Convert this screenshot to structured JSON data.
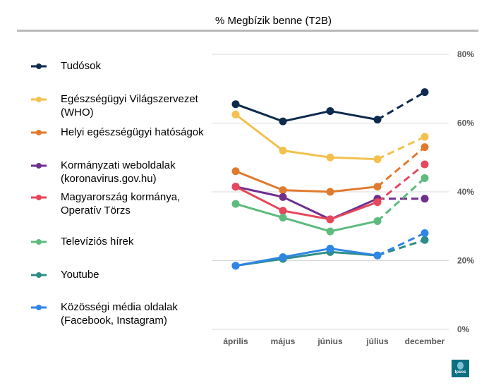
{
  "chart_data": {
    "type": "line",
    "title": "% Megbízik benne (T2B)",
    "categories": [
      "április",
      "május",
      "június",
      "július",
      "december"
    ],
    "ylim": [
      0,
      80
    ],
    "yticks": [
      "0%",
      "20%",
      "40%",
      "60%",
      "80%"
    ],
    "yaxis_position": "right",
    "grid": "horizontal",
    "legend_position": "left",
    "dashed_from_category": "július",
    "series": [
      {
        "name": "Tudósok",
        "color": "#0e2a4e",
        "values": [
          65.5,
          60.5,
          63.5,
          61,
          69
        ]
      },
      {
        "name": "Egészségügyi Világszervezet (WHO)",
        "color": "#f2c14e",
        "values": [
          62.5,
          52,
          50,
          49.5,
          56
        ]
      },
      {
        "name": "Helyi egészségügyi hatóságok",
        "color": "#e07a2e",
        "values": [
          46,
          40.5,
          40,
          41.5,
          53
        ]
      },
      {
        "name": "Kormányzati weboldalak (koronavirus.gov.hu)",
        "color": "#6f2f8e",
        "values": [
          41.5,
          38.5,
          32,
          38,
          38
        ]
      },
      {
        "name": "Magyarország kormánya, Operatív Törzs",
        "color": "#e5475b",
        "values": [
          41.5,
          34.5,
          32,
          37,
          48
        ]
      },
      {
        "name": "Televíziós hírek",
        "color": "#5dbb7e",
        "values": [
          36.5,
          32.5,
          28.5,
          31.5,
          44
        ]
      },
      {
        "name": "Youtube",
        "color": "#2e8c87",
        "values": [
          18.5,
          20.5,
          22.5,
          21.5,
          26
        ]
      },
      {
        "name": "Közösségi média oldalak (Facebook, Instagram)",
        "color": "#2f86e6",
        "values": [
          18.5,
          21,
          23.5,
          21.5,
          28
        ]
      }
    ]
  },
  "legend": [
    {
      "label": "Tudósok",
      "color": "#0e2a4e"
    },
    {
      "label": "Egészségügyi Világszervezet (WHO)",
      "color": "#f2c14e"
    },
    {
      "label": "Helyi egészségügyi hatóságok",
      "color": "#e07a2e"
    },
    {
      "label": "Kormányzati weboldalak (koronavirus.gov.hu)",
      "color": "#6f2f8e"
    },
    {
      "label": "Magyarország kormánya, Operatív Törzs",
      "color": "#e5475b"
    },
    {
      "label": "Televíziós hírek",
      "color": "#5dbb7e"
    },
    {
      "label": "Youtube",
      "color": "#2e8c87"
    },
    {
      "label": "Közösségi média oldalak (Facebook, Instagram)",
      "color": "#2f86e6"
    }
  ],
  "logo": {
    "text": "Ipsos",
    "color": "#0d6f82"
  }
}
